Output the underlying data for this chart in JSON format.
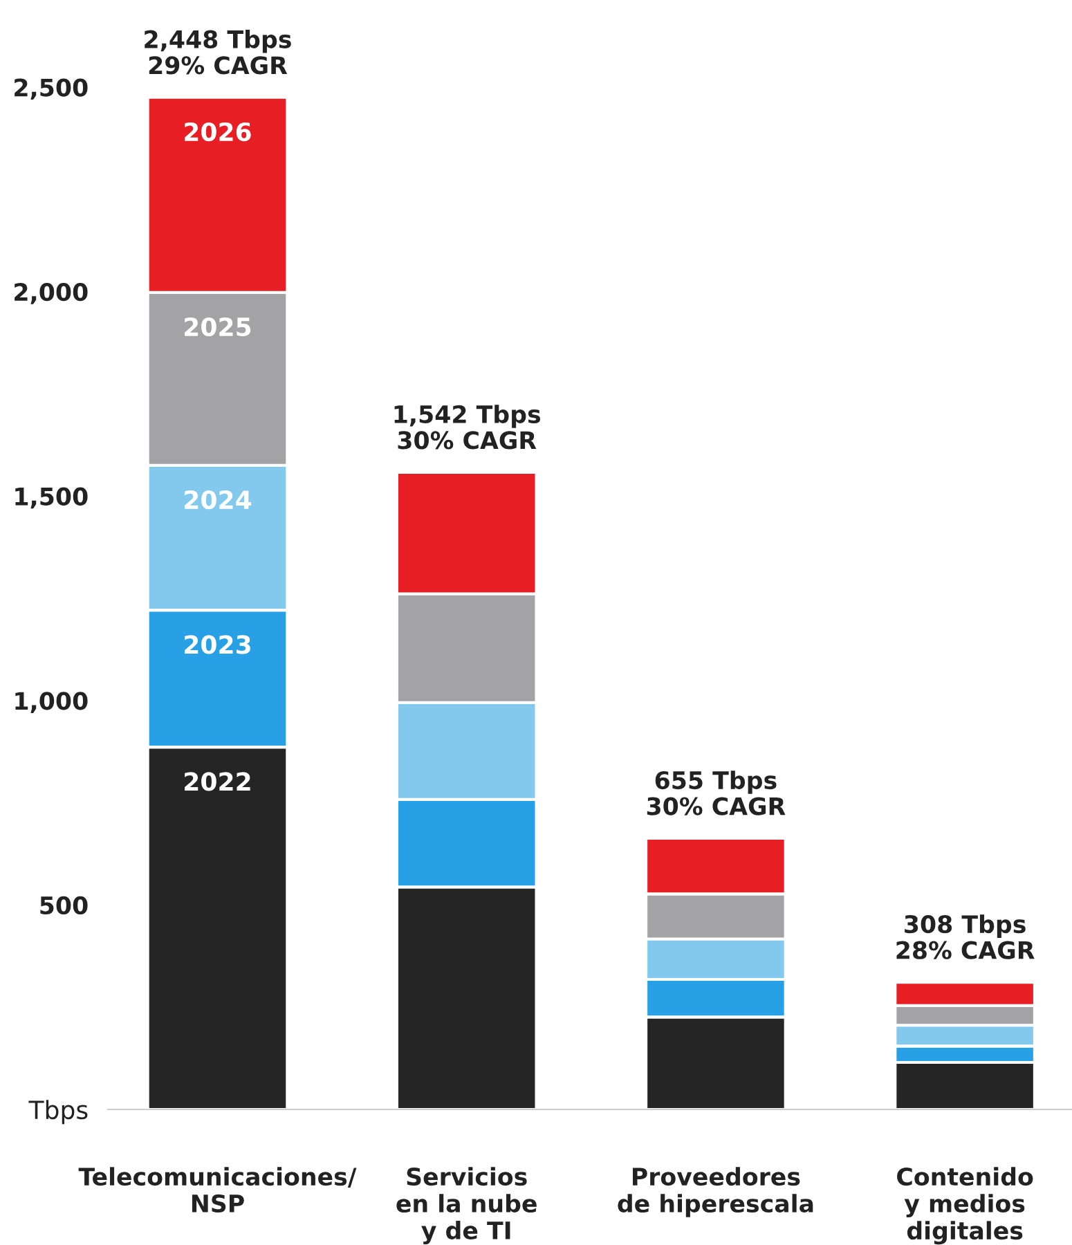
{
  "chart_data": {
    "type": "bar",
    "stacked": true,
    "categories": [
      "Telecomunicaciones/\nNSP",
      "Servicios\nen la nube\ny de TI",
      "Proveedores\nde hiperescala",
      "Contenido\ny medios\ndigitales"
    ],
    "series": [
      {
        "name": "2022",
        "color": "#252525",
        "values": [
          886,
          544,
          226,
          115
        ]
      },
      {
        "name": "2023",
        "color": "#27a0e6",
        "values": [
          335,
          214,
          92,
          40
        ]
      },
      {
        "name": "2024",
        "color": "#82c9ed",
        "values": [
          354,
          237,
          99,
          51
        ]
      },
      {
        "name": "2025",
        "color": "#a3a3a5",
        "values": [
          423,
          266,
          110,
          48
        ]
      },
      {
        "name": "2026",
        "color": "#e81e25",
        "values": [
          477,
          297,
          136,
          57
        ]
      }
    ],
    "totals": [
      "2,448 Tbps\n29% CAGR",
      "1,542 Tbps\n30% CAGR",
      "655 Tbps\n30% CAGR",
      "308 Tbps\n28% CAGR"
    ],
    "ylim": [
      0,
      2500
    ],
    "yticks": [
      {
        "value": 0,
        "label": "Tbps"
      },
      {
        "value": 500,
        "label": "500"
      },
      {
        "value": 1000,
        "label": "1,000"
      },
      {
        "value": 1500,
        "label": "1,500"
      },
      {
        "value": 2000,
        "label": "2,000"
      },
      {
        "value": 2500,
        "label": "2,500"
      }
    ],
    "grid": false,
    "legend": false
  }
}
